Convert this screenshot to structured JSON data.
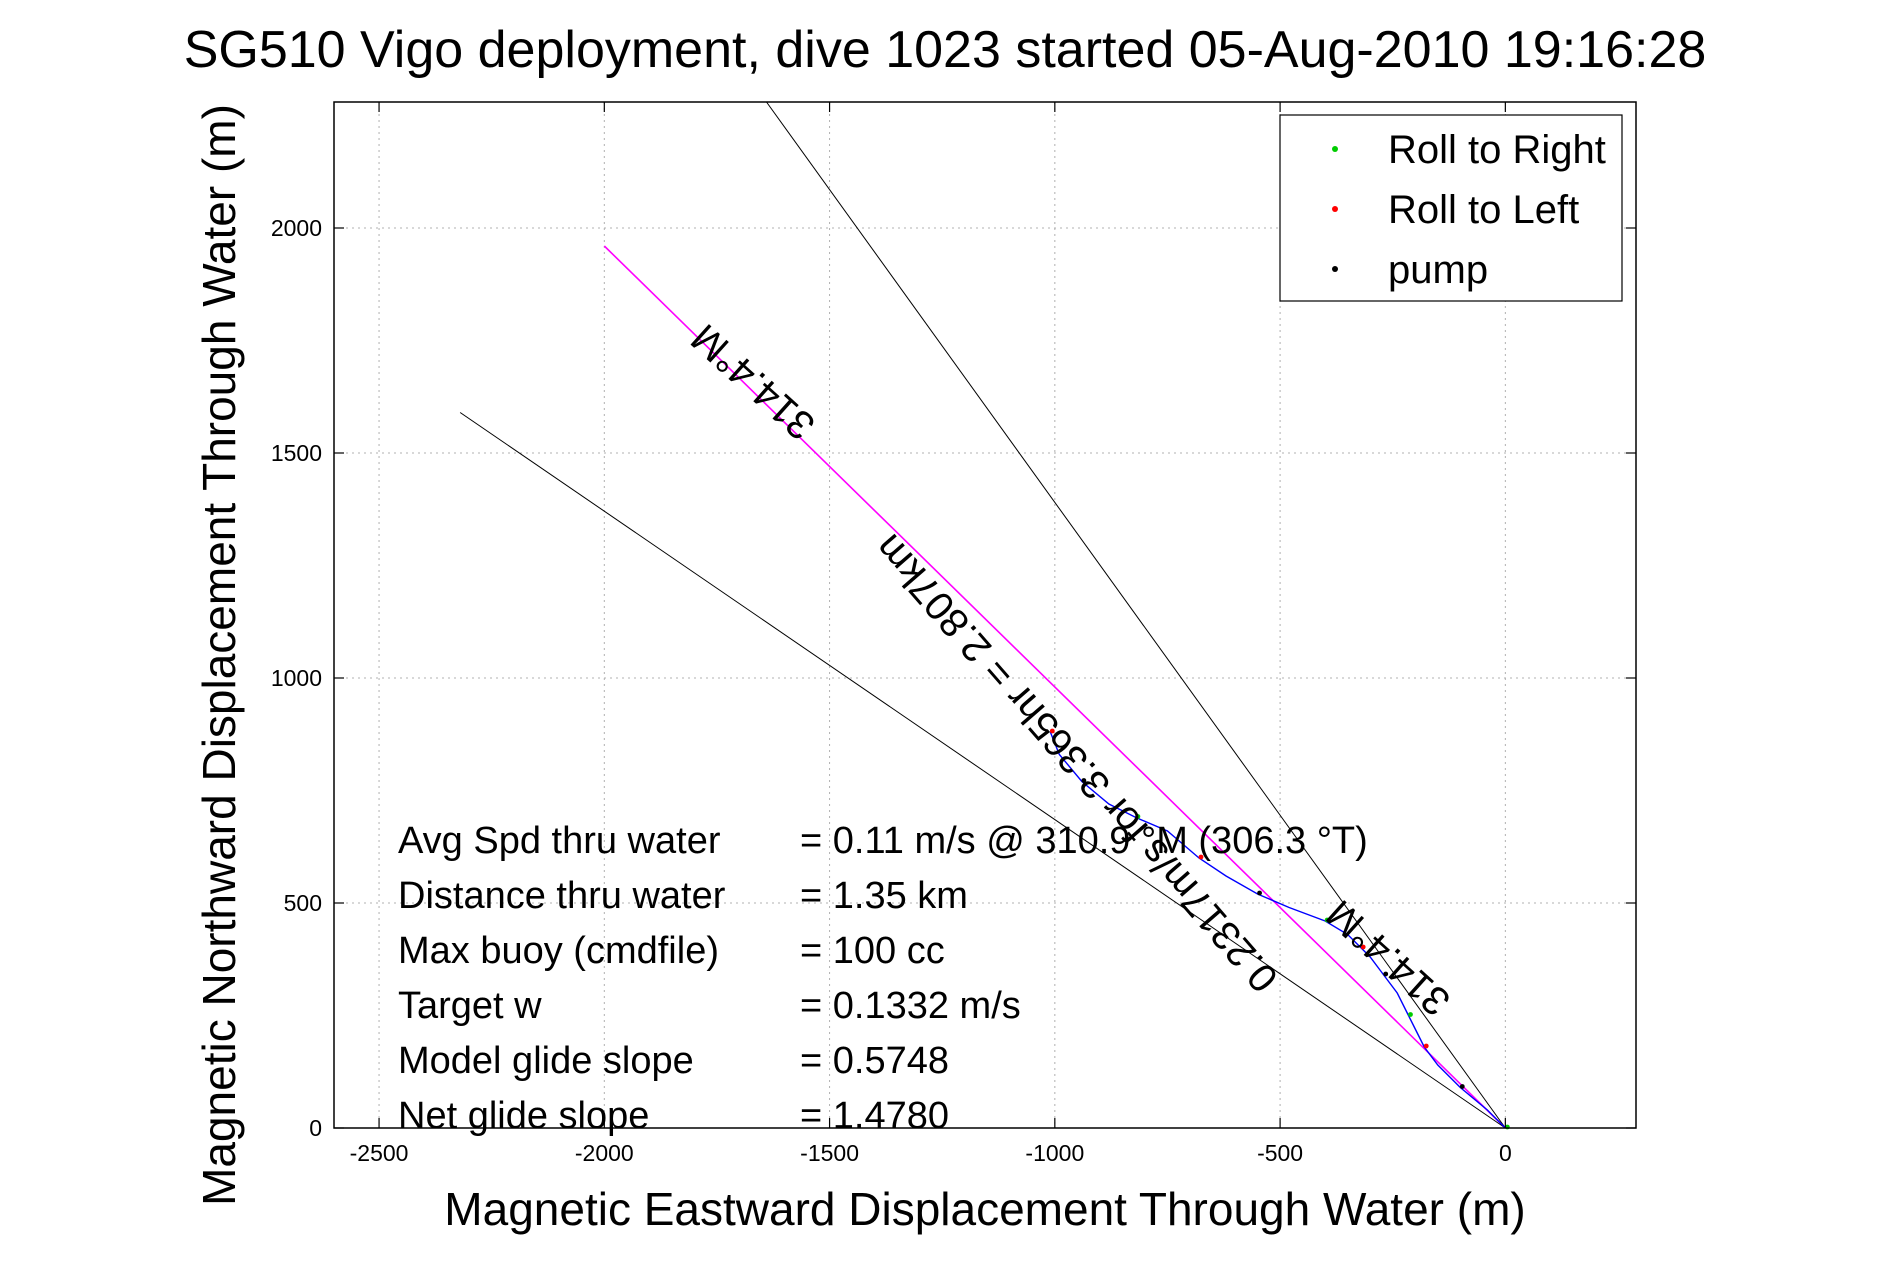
{
  "chart_data": {
    "type": "line",
    "title": "SG510 Vigo deployment, dive 1023 started 05-Aug-2010 19:16:28",
    "xlabel": "Magnetic Eastward Displacement Through Water (m)",
    "ylabel": "Magnetic Northward Displacement Through Water (m)",
    "xlim": [
      -2500,
      0
    ],
    "ylim": [
      0,
      2000
    ],
    "xlim_view": [
      -2600,
      290
    ],
    "ylim_view": [
      0,
      2280
    ],
    "x_ticks": [
      -2500,
      -2000,
      -1500,
      -1000,
      -500,
      0
    ],
    "y_ticks": [
      0,
      500,
      1000,
      1500,
      2000
    ],
    "x_tick_labels": [
      "-2500",
      "-2000",
      "-1500",
      "-1000",
      "-500",
      "0"
    ],
    "y_tick_labels": [
      "0",
      "500",
      "1000",
      "1500",
      "2000"
    ],
    "grid": true,
    "legend_position": "top-right",
    "legend": [
      {
        "name": "Roll to Right",
        "color": "#00cc00",
        "marker": "dot"
      },
      {
        "name": "Roll to Left",
        "color": "#ff0000",
        "marker": "dot"
      },
      {
        "name": "pump",
        "color": "#000000",
        "marker": "dot"
      }
    ],
    "reference_lines": [
      {
        "name": "heading-line",
        "color": "#ff00ff",
        "x": [
          0,
          -2000
        ],
        "y": [
          0,
          1960
        ]
      },
      {
        "name": "heading-bound-upper",
        "color": "#000000",
        "x": [
          0,
          -1640
        ],
        "y": [
          0,
          2280
        ]
      },
      {
        "name": "heading-bound-lower",
        "color": "#000000",
        "x": [
          0,
          -2320
        ],
        "y": [
          0,
          1590
        ]
      }
    ],
    "series": [
      {
        "name": "track",
        "color": "#0000ff",
        "x": [
          0,
          -40,
          -100,
          -150,
          -180,
          -200,
          -215,
          -240,
          -270,
          -300,
          -320,
          -350,
          -400,
          -480,
          -550,
          -620,
          -680,
          -750,
          -820,
          -880,
          -940,
          -990,
          -1010
        ],
        "y": [
          0,
          40,
          90,
          140,
          180,
          220,
          250,
          300,
          340,
          380,
          400,
          430,
          460,
          490,
          520,
          560,
          600,
          660,
          690,
          720,
          770,
          830,
          880
        ]
      }
    ],
    "annotations": [
      {
        "text": "314.4°M",
        "x": -1650,
        "y": 1680,
        "rotation_deg": 42
      },
      {
        "text": "0.2317m/s for 3.365hr = 2.807km",
        "x": -930,
        "y": 830,
        "rotation_deg": 49
      },
      {
        "text": "314.4°M",
        "x": -240,
        "y": 400,
        "rotation_deg": 42
      }
    ],
    "stats": [
      {
        "label": "Avg Spd thru water",
        "value": "=  0.11 m/s @ 310.9 °M (306.3 °T)"
      },
      {
        "label": "Distance thru water",
        "value": "=  1.35 km"
      },
      {
        "label": "Max buoy (cmdfile)",
        "value": "= 100 cc"
      },
      {
        "label": "Target w",
        "value": "= 0.1332 m/s"
      },
      {
        "label": "Model glide slope",
        "value": "= 0.5748"
      },
      {
        "label": "Net glide slope",
        "value": "= 1.4780"
      }
    ]
  }
}
